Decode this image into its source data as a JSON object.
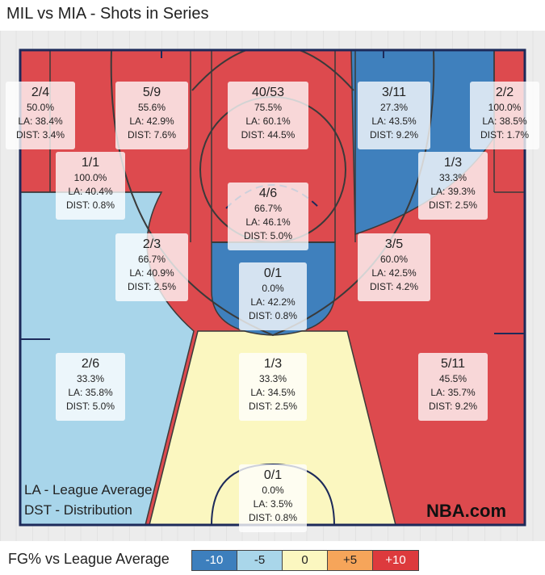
{
  "title": "MIL vs MIA - Shots in Series",
  "notes": [
    "LA - League Average",
    "DST - Distribution"
  ],
  "brand": "NBA.com",
  "scale": {
    "title": "FG% vs League Average",
    "items": [
      {
        "label": "-10",
        "color": "#3d7fbd",
        "text_color": "#ffffff"
      },
      {
        "label": "-5",
        "color": "#a9d6ea",
        "text_color": "#222222"
      },
      {
        "label": "0",
        "color": "#fbf7c0",
        "text_color": "#222222"
      },
      {
        "label": "+5",
        "color": "#f6a55a",
        "text_color": "#222222"
      },
      {
        "label": "+10",
        "color": "#dd3a3d",
        "text_color": "#ffffff"
      }
    ]
  },
  "chart_data": {
    "type": "table",
    "zones": [
      {
        "made": "2/4",
        "pct": "50.0%",
        "la": "LA: 38.4%",
        "dist": "DIST: 3.4%",
        "color": "red"
      },
      {
        "made": "5/9",
        "pct": "55.6%",
        "la": "LA: 42.9%",
        "dist": "DIST: 7.6%",
        "color": "red"
      },
      {
        "made": "40/53",
        "pct": "75.5%",
        "la": "LA: 60.1%",
        "dist": "DIST: 44.5%",
        "color": "red"
      },
      {
        "made": "3/11",
        "pct": "27.3%",
        "la": "LA: 43.5%",
        "dist": "DIST: 9.2%",
        "color": "blue"
      },
      {
        "made": "2/2",
        "pct": "100.0%",
        "la": "LA: 38.5%",
        "dist": "DIST: 1.7%",
        "color": "red"
      },
      {
        "made": "1/1",
        "pct": "100.0%",
        "la": "LA: 40.4%",
        "dist": "DIST: 0.8%",
        "color": "red"
      },
      {
        "made": "1/3",
        "pct": "33.3%",
        "la": "LA: 39.3%",
        "dist": "DIST: 2.5%",
        "color": "blue"
      },
      {
        "made": "4/6",
        "pct": "66.7%",
        "la": "LA: 46.1%",
        "dist": "DIST: 5.0%",
        "color": "red"
      },
      {
        "made": "2/3",
        "pct": "66.7%",
        "la": "LA: 40.9%",
        "dist": "DIST: 2.5%",
        "color": "red"
      },
      {
        "made": "3/5",
        "pct": "60.0%",
        "la": "LA: 42.5%",
        "dist": "DIST: 4.2%",
        "color": "red"
      },
      {
        "made": "0/1",
        "pct": "0.0%",
        "la": "LA: 42.2%",
        "dist": "DIST: 0.8%",
        "color": "blue"
      },
      {
        "made": "2/6",
        "pct": "33.3%",
        "la": "LA: 35.8%",
        "dist": "DIST: 5.0%",
        "color": "lightblue"
      },
      {
        "made": "1/3",
        "pct": "33.3%",
        "la": "LA: 34.5%",
        "dist": "DIST: 2.5%",
        "color": "yellow"
      },
      {
        "made": "5/11",
        "pct": "45.5%",
        "la": "LA: 35.7%",
        "dist": "DIST: 9.2%",
        "color": "red"
      },
      {
        "made": "0/1",
        "pct": "0.0%",
        "la": "LA: 3.5%",
        "dist": "DIST: 0.8%",
        "color": "yellow"
      }
    ]
  }
}
